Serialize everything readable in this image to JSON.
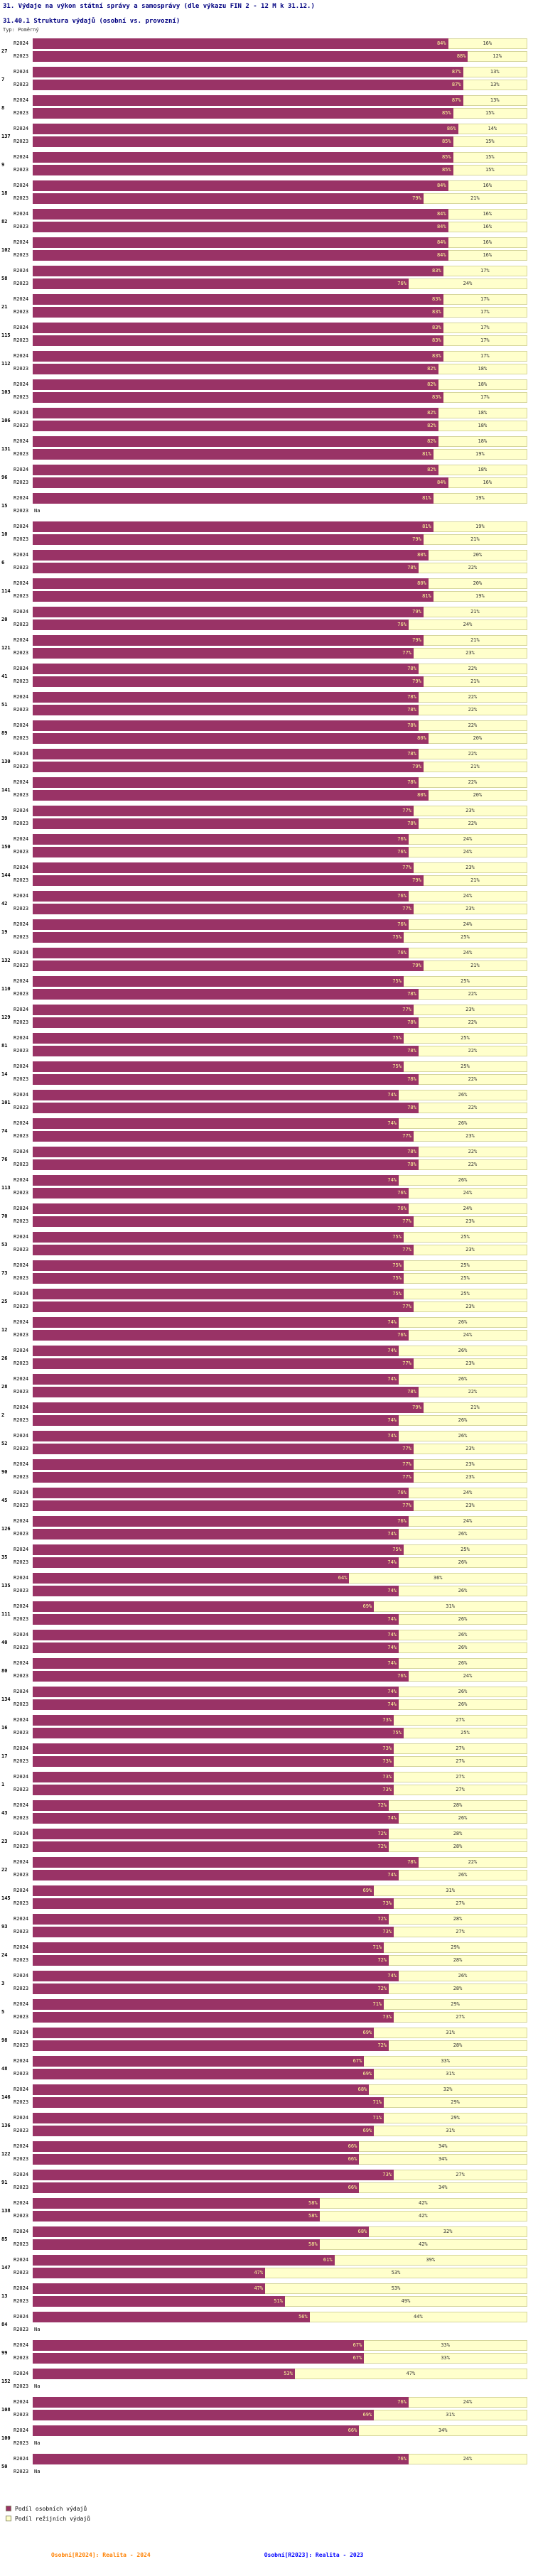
{
  "header": {
    "title": "31. Výdaje na výkon státní správy a samosprávy (dle výkazu FIN 2 - 12 M k 31.12.)",
    "subtitle": "31.40.1 Struktura výdajů (osobní vs. provozní)",
    "type_label": "Typ: Poměrný"
  },
  "legend": {
    "items": [
      {
        "label": "Podíl osobních výdajů",
        "color": "#993366"
      },
      {
        "label": "Podíl režijních výdajů",
        "color": "#FFFFCC"
      }
    ]
  },
  "footnotes": {
    "r2024": {
      "text": "Osobní[R2024]: Realita - 2024",
      "color": "#FF8000"
    },
    "r2023": {
      "text": "Osobní[R2023]: Realita - 2023",
      "color": "#0000FF"
    }
  },
  "colors": {
    "osobni": "#993366",
    "rezijni": "#FFFFCC",
    "dark_label": "#FFFF99",
    "title": "#000080"
  },
  "na_label": "Na",
  "chart_data": {
    "type": "bar",
    "stacked": true,
    "orientation": "horizontal",
    "unit": "%",
    "xlim": [
      0,
      100
    ],
    "series_labels": [
      "R2024",
      "R2023"
    ],
    "columns": [
      "osobni_pct",
      "rezijni_pct"
    ],
    "groups": [
      {
        "id": "27",
        "r2024": [
          84,
          16
        ],
        "r2023": [
          88,
          12
        ]
      },
      {
        "id": "7",
        "r2024": [
          87,
          13
        ],
        "r2023": [
          87,
          13
        ]
      },
      {
        "id": "8",
        "r2024": [
          87,
          13
        ],
        "r2023": [
          85,
          15
        ]
      },
      {
        "id": "137",
        "r2024": [
          86,
          14
        ],
        "r2023": [
          85,
          15
        ]
      },
      {
        "id": "9",
        "r2024": [
          85,
          15
        ],
        "r2023": [
          85,
          15
        ]
      },
      {
        "id": "18",
        "r2024": [
          84,
          16
        ],
        "r2023": [
          79,
          21
        ]
      },
      {
        "id": "82",
        "r2024": [
          84,
          16
        ],
        "r2023": [
          84,
          16
        ]
      },
      {
        "id": "102",
        "r2024": [
          84,
          16
        ],
        "r2023": [
          84,
          16
        ]
      },
      {
        "id": "58",
        "r2024": [
          83,
          17
        ],
        "r2023": [
          76,
          24
        ]
      },
      {
        "id": "21",
        "r2024": [
          83,
          17
        ],
        "r2023": [
          83,
          17
        ]
      },
      {
        "id": "115",
        "r2024": [
          83,
          17
        ],
        "r2023": [
          83,
          17
        ]
      },
      {
        "id": "112",
        "r2024": [
          83,
          17
        ],
        "r2023": [
          82,
          18
        ]
      },
      {
        "id": "103",
        "r2024": [
          82,
          18
        ],
        "r2023": [
          83,
          17
        ]
      },
      {
        "id": "106",
        "r2024": [
          82,
          18
        ],
        "r2023": [
          82,
          18
        ]
      },
      {
        "id": "131",
        "r2024": [
          82,
          18
        ],
        "r2023": [
          81,
          19
        ]
      },
      {
        "id": "96",
        "r2024": [
          82,
          18
        ],
        "r2023": [
          84,
          16
        ]
      },
      {
        "id": "15",
        "r2024": [
          81,
          19
        ],
        "r2023": null
      },
      {
        "id": "10",
        "r2024": [
          81,
          19
        ],
        "r2023": [
          79,
          21
        ]
      },
      {
        "id": "6",
        "r2024": [
          80,
          20
        ],
        "r2023": [
          78,
          22
        ]
      },
      {
        "id": "114",
        "r2024": [
          80,
          20
        ],
        "r2023": [
          81,
          19
        ]
      },
      {
        "id": "20",
        "r2024": [
          79,
          21
        ],
        "r2023": [
          76,
          24
        ]
      },
      {
        "id": "121",
        "r2024": [
          79,
          21
        ],
        "r2023": [
          77,
          23
        ]
      },
      {
        "id": "41",
        "r2024": [
          78,
          22
        ],
        "r2023": [
          79,
          21
        ]
      },
      {
        "id": "51",
        "r2024": [
          78,
          22
        ],
        "r2023": [
          78,
          22
        ]
      },
      {
        "id": "89",
        "r2024": [
          78,
          22
        ],
        "r2023": [
          80,
          20
        ]
      },
      {
        "id": "130",
        "r2024": [
          78,
          22
        ],
        "r2023": [
          79,
          21
        ]
      },
      {
        "id": "141",
        "r2024": [
          78,
          22
        ],
        "r2023": [
          80,
          20
        ]
      },
      {
        "id": "39",
        "r2024": [
          77,
          23
        ],
        "r2023": [
          78,
          22
        ]
      },
      {
        "id": "150",
        "r2024": [
          76,
          24
        ],
        "r2023": [
          76,
          24
        ]
      },
      {
        "id": "144",
        "r2024": [
          77,
          23
        ],
        "r2023": [
          79,
          21
        ]
      },
      {
        "id": "42",
        "r2024": [
          76,
          24
        ],
        "r2023": [
          77,
          23
        ]
      },
      {
        "id": "19",
        "r2024": [
          76,
          24
        ],
        "r2023": [
          75,
          25
        ]
      },
      {
        "id": "132",
        "r2024": [
          76,
          24
        ],
        "r2023": [
          79,
          21
        ]
      },
      {
        "id": "110",
        "r2024": [
          75,
          25
        ],
        "r2023": [
          78,
          22
        ]
      },
      {
        "id": "129",
        "r2024": [
          77,
          23
        ],
        "r2023": [
          78,
          22
        ]
      },
      {
        "id": "81",
        "r2024": [
          75,
          25
        ],
        "r2023": [
          78,
          22
        ]
      },
      {
        "id": "14",
        "r2024": [
          75,
          25
        ],
        "r2023": [
          78,
          22
        ]
      },
      {
        "id": "101",
        "r2024": [
          74,
          26
        ],
        "r2023": [
          78,
          22
        ]
      },
      {
        "id": "74",
        "r2024": [
          74,
          26
        ],
        "r2023": [
          77,
          23
        ]
      },
      {
        "id": "76",
        "r2024": [
          78,
          22
        ],
        "r2023": [
          78,
          22
        ]
      },
      {
        "id": "113",
        "r2024": [
          74,
          26
        ],
        "r2023": [
          76,
          24
        ]
      },
      {
        "id": "70",
        "r2024": [
          76,
          24
        ],
        "r2023": [
          77,
          23
        ]
      },
      {
        "id": "53",
        "r2024": [
          75,
          25
        ],
        "r2023": [
          77,
          23
        ]
      },
      {
        "id": "73",
        "r2024": [
          75,
          25
        ],
        "r2023": [
          75,
          25
        ]
      },
      {
        "id": "25",
        "r2024": [
          75,
          25
        ],
        "r2023": [
          77,
          23
        ]
      },
      {
        "id": "12",
        "r2024": [
          74,
          26
        ],
        "r2023": [
          76,
          24
        ]
      },
      {
        "id": "26",
        "r2024": [
          74,
          26
        ],
        "r2023": [
          77,
          23
        ]
      },
      {
        "id": "28",
        "r2024": [
          74,
          26
        ],
        "r2023": [
          78,
          22
        ]
      },
      {
        "id": "2",
        "r2024": [
          79,
          21
        ],
        "r2023": [
          74,
          26
        ]
      },
      {
        "id": "52",
        "r2024": [
          74,
          26
        ],
        "r2023": [
          77,
          23
        ]
      },
      {
        "id": "90",
        "r2024": [
          77,
          23
        ],
        "r2023": [
          77,
          23
        ]
      },
      {
        "id": "45",
        "r2024": [
          76,
          24
        ],
        "r2023": [
          77,
          23
        ]
      },
      {
        "id": "126",
        "r2024": [
          76,
          24
        ],
        "r2023": [
          74,
          26
        ]
      },
      {
        "id": "35",
        "r2024": [
          75,
          25
        ],
        "r2023": [
          74,
          26
        ]
      },
      {
        "id": "135",
        "r2024": [
          64,
          36
        ],
        "r2023": [
          74,
          26
        ]
      },
      {
        "id": "111",
        "r2024": [
          69,
          31
        ],
        "r2023": [
          74,
          26
        ]
      },
      {
        "id": "40",
        "r2024": [
          74,
          26
        ],
        "r2023": [
          74,
          26
        ]
      },
      {
        "id": "80",
        "r2024": [
          74,
          26
        ],
        "r2023": [
          76,
          24
        ]
      },
      {
        "id": "134",
        "r2024": [
          74,
          26
        ],
        "r2023": [
          74,
          26
        ]
      },
      {
        "id": "16",
        "r2024": [
          73,
          27
        ],
        "r2023": [
          75,
          25
        ]
      },
      {
        "id": "17",
        "r2024": [
          73,
          27
        ],
        "r2023": [
          73,
          27
        ]
      },
      {
        "id": "1",
        "r2024": [
          73,
          27
        ],
        "r2023": [
          73,
          27
        ]
      },
      {
        "id": "43",
        "r2024": [
          72,
          28
        ],
        "r2023": [
          74,
          26
        ]
      },
      {
        "id": "23",
        "r2024": [
          72,
          28
        ],
        "r2023": [
          72,
          28
        ]
      },
      {
        "id": "22",
        "r2024": [
          78,
          22
        ],
        "r2023": [
          74,
          26
        ]
      },
      {
        "id": "145",
        "r2024": [
          69,
          31
        ],
        "r2023": [
          73,
          27
        ]
      },
      {
        "id": "93",
        "r2024": [
          72,
          28
        ],
        "r2023": [
          73,
          27
        ]
      },
      {
        "id": "24",
        "r2024": [
          71,
          29
        ],
        "r2023": [
          72,
          28
        ]
      },
      {
        "id": "3",
        "r2024": [
          74,
          26
        ],
        "r2023": [
          72,
          28
        ]
      },
      {
        "id": "5",
        "r2024": [
          71,
          29
        ],
        "r2023": [
          73,
          27
        ]
      },
      {
        "id": "98",
        "r2024": [
          69,
          31
        ],
        "r2023": [
          72,
          28
        ]
      },
      {
        "id": "48",
        "r2024": [
          67,
          33
        ],
        "r2023": [
          69,
          31
        ]
      },
      {
        "id": "146",
        "r2024": [
          68,
          32
        ],
        "r2023": [
          71,
          29
        ]
      },
      {
        "id": "136",
        "r2024": [
          71,
          29
        ],
        "r2023": [
          69,
          31
        ]
      },
      {
        "id": "122",
        "r2024": [
          66,
          34
        ],
        "r2023": [
          66,
          34
        ]
      },
      {
        "id": "91",
        "r2024": [
          73,
          27
        ],
        "r2023": [
          66,
          34
        ]
      },
      {
        "id": "138",
        "r2024": [
          58,
          42
        ],
        "r2023": [
          58,
          42
        ]
      },
      {
        "id": "85",
        "r2024": [
          68,
          32
        ],
        "r2023": [
          58,
          42
        ]
      },
      {
        "id": "147",
        "r2024": [
          61,
          39
        ],
        "r2023": [
          47,
          53
        ]
      },
      {
        "id": "13",
        "r2024": [
          47,
          53
        ],
        "r2023": [
          51,
          49
        ]
      },
      {
        "id": "84",
        "r2024": [
          56,
          44
        ],
        "r2023": null
      },
      {
        "id": "99",
        "r2024": [
          67,
          33
        ],
        "r2023": [
          67,
          33
        ]
      },
      {
        "id": "152",
        "r2024": [
          53,
          47
        ],
        "r2023": null
      },
      {
        "id": "108",
        "r2024": [
          76,
          24
        ],
        "r2023": [
          69,
          31
        ]
      },
      {
        "id": "100",
        "r2024": [
          66,
          34
        ],
        "r2023": null
      },
      {
        "id": "50",
        "r2024": [
          76,
          24
        ],
        "r2023": null
      }
    ]
  }
}
